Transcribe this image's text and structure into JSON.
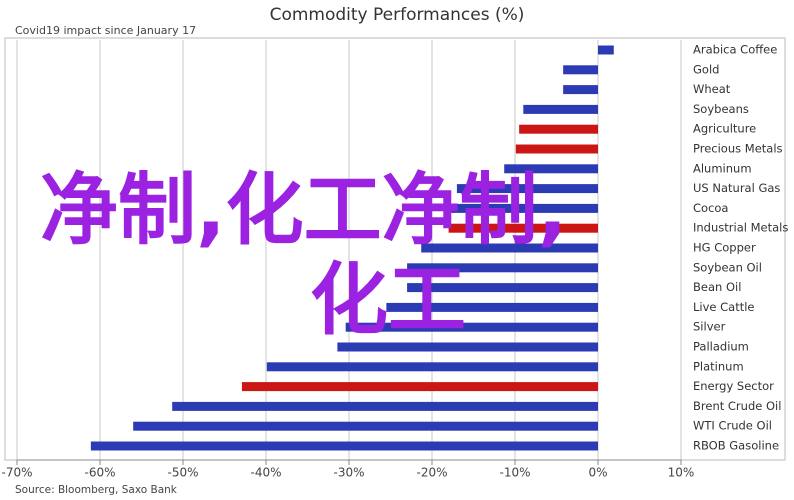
{
  "chart_data": {
    "type": "hbar",
    "title": "Commodity Performances (%)",
    "subtitle": "Covid19 impact since January 17",
    "source": "Source: Bloomberg, Saxo Bank",
    "overlay_text": [
      "净制,化工净制,",
      "化工"
    ],
    "categories": [
      "Arabica Coffee",
      "Gold",
      "Wheat",
      "Soybeans",
      "Agriculture",
      "Precious Metals",
      "Aluminum",
      "US Natural Gas",
      "Cocoa",
      "Industrial Metals",
      "HG Copper",
      "Soybean Oil",
      "Bean Oil",
      "Live Cattle",
      "Silver",
      "Palladium",
      "Platinum",
      "Energy Sector",
      "Brent Crude Oil",
      "WTI Crude Oil",
      "RBOB Gasoline"
    ],
    "values": [
      1.9,
      -4.2,
      -4.2,
      -9,
      -9.5,
      -9.9,
      -11.3,
      -17,
      -18.5,
      -18,
      -21.3,
      -23,
      -23,
      -25.5,
      -30.4,
      -31.4,
      -39.9,
      -42.9,
      -51.3,
      -56,
      -61.1
    ],
    "colors": [
      "#2b3bb3",
      "#2b3bb3",
      "#2b3bb3",
      "#2b3bb3",
      "#cc1616",
      "#cc1616",
      "#2b3bb3",
      "#2b3bb3",
      "#2b3bb3",
      "#cc1616",
      "#2b3bb3",
      "#2b3bb3",
      "#2b3bb3",
      "#2b3bb3",
      "#2b3bb3",
      "#2b3bb3",
      "#2b3bb3",
      "#cc1616",
      "#2b3bb3",
      "#2b3bb3",
      "#2b3bb3"
    ],
    "xlim": [
      -70,
      10
    ],
    "xticks": [
      {
        "value": -70,
        "label": "-70%"
      },
      {
        "value": -60,
        "label": "-60%"
      },
      {
        "value": -50,
        "label": "-50%"
      },
      {
        "value": -40,
        "label": "-40%"
      },
      {
        "value": -30,
        "label": "-30%"
      },
      {
        "value": -20,
        "label": "-20%"
      },
      {
        "value": -10,
        "label": "-10%"
      },
      {
        "value": 0,
        "label": "0%"
      },
      {
        "value": 10,
        "label": "10%"
      }
    ],
    "grid": true
  }
}
